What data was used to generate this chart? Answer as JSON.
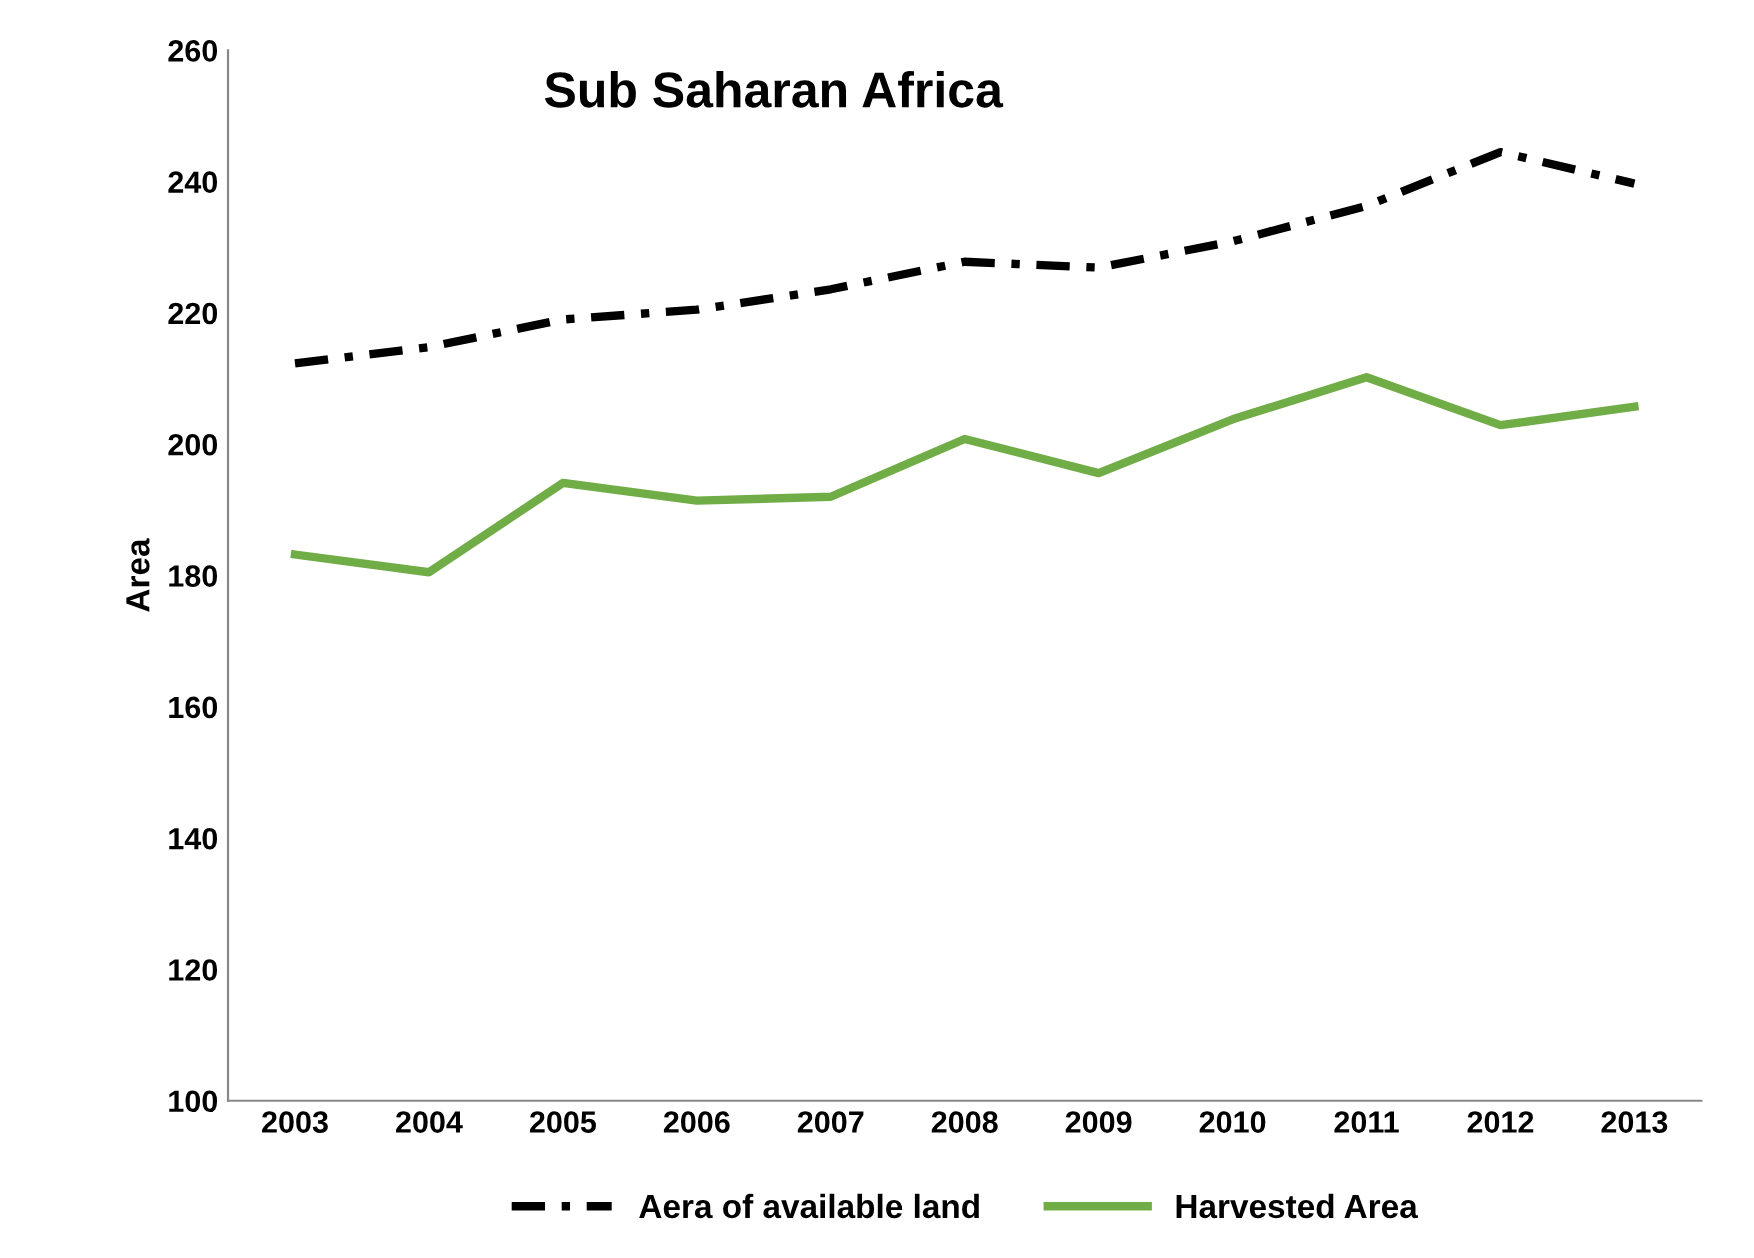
{
  "chart_data": {
    "type": "line",
    "title": "Sub Saharan Africa",
    "ylabel": "Area",
    "categories": [
      "2003",
      "2004",
      "2005",
      "2006",
      "2007",
      "2008",
      "2009",
      "2010",
      "2011",
      "2012",
      "2013"
    ],
    "series": [
      {
        "name": "Aera of available land",
        "color": "#000000",
        "line_style": "dashed",
        "values": [
          212.3,
          214.8,
          219,
          220.5,
          223.6,
          227.8,
          226.9,
          230.9,
          236.3,
          244.5,
          239.7
        ]
      },
      {
        "name": "Harvested Area",
        "color": "#70ad47",
        "line_style": "solid",
        "values": [
          183.2,
          180.5,
          194.1,
          191.4,
          192,
          200.8,
          195.6,
          203.8,
          210.2,
          202.9,
          205.7
        ]
      }
    ],
    "ylim": [
      100,
      260
    ],
    "yticks": [
      100,
      120,
      140,
      160,
      180,
      200,
      220,
      240,
      260
    ],
    "grid": false,
    "legend": "bottom",
    "marker": "none"
  }
}
